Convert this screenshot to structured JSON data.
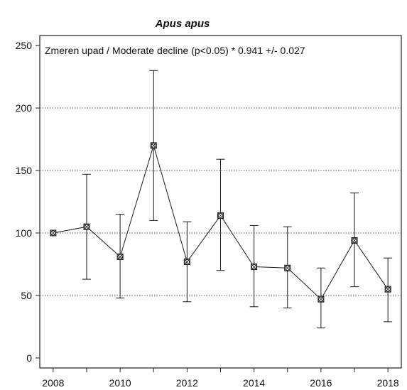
{
  "chart_data": {
    "type": "line",
    "title": "Apus apus",
    "annotation": "Zmeren upad / Moderate decline (p<0.05) *  0.941 +/- 0.027",
    "xlabel": "",
    "ylabel": "",
    "x": [
      2008,
      2009,
      2010,
      2011,
      2012,
      2013,
      2014,
      2015,
      2016,
      2017,
      2018
    ],
    "series": [
      {
        "values": [
          100,
          105,
          81,
          170,
          77,
          114,
          73,
          72,
          47,
          94,
          55
        ],
        "lower": [
          100,
          63,
          48,
          110,
          45,
          70,
          41,
          40,
          24,
          57,
          29
        ],
        "upper": [
          100,
          147,
          115,
          230,
          109,
          159,
          106,
          105,
          72,
          132,
          80
        ]
      }
    ],
    "xlim": [
      2007.6,
      2018.4
    ],
    "ylim": [
      -8,
      258
    ],
    "xticks": [
      2008,
      2010,
      2012,
      2014,
      2016,
      2018
    ],
    "yticks": [
      0,
      50,
      100,
      150,
      200,
      250
    ],
    "gridlines_y": [
      50,
      100,
      150,
      200
    ],
    "grid": "dotted horizontal",
    "legend": "none",
    "colors": {
      "line": "#1a1a1a",
      "grid": "#555555",
      "frame": "#222222"
    }
  }
}
